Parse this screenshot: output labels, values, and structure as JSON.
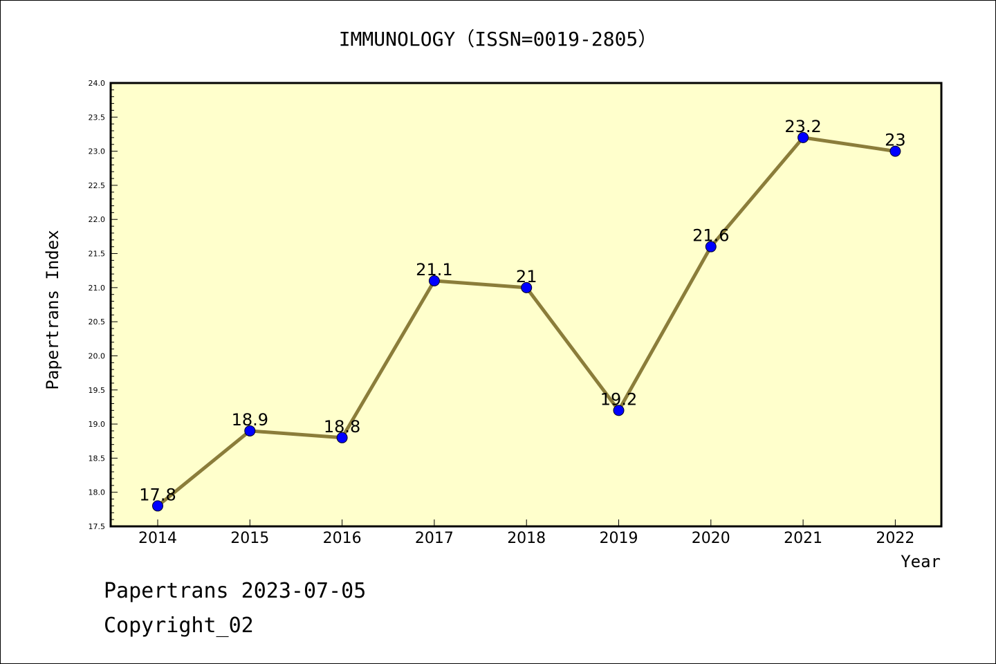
{
  "footer": {
    "line1": "Papertrans 2023-07-05",
    "line2": "Copyright_02"
  },
  "chart_data": {
    "type": "line",
    "title": "IMMUNOLOGY（ISSN=0019-2805）",
    "xlabel": "Year",
    "ylabel": "Papertrans Index",
    "categories": [
      "2014",
      "2015",
      "2016",
      "2017",
      "2018",
      "2019",
      "2020",
      "2021",
      "2022"
    ],
    "series": [
      {
        "values": [
          17.8,
          18.9,
          18.8,
          21.1,
          21.0,
          19.2,
          21.6,
          23.2,
          23.0
        ],
        "data_labels": [
          "17.8",
          "18.9",
          "18.8",
          "21.1",
          "21",
          "19.2",
          "21.6",
          "23.2",
          "23"
        ]
      }
    ],
    "ylim": [
      17.5,
      24.0
    ],
    "yticks": [
      "17.5",
      "18.0",
      "18.5",
      "19.0",
      "19.5",
      "20.0",
      "20.5",
      "21.0",
      "21.5",
      "22.0",
      "22.5",
      "23.0",
      "23.5",
      "24.0"
    ],
    "grid": false,
    "legend": "none",
    "colors": {
      "plot_background": "#ffffcc",
      "line": "#8b7d3a",
      "marker": "#0000ff",
      "axes": "#000000"
    }
  }
}
